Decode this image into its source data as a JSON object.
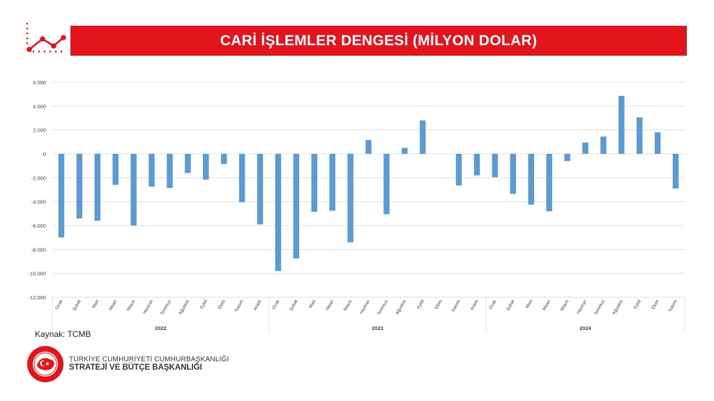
{
  "header": {
    "title": "CARİ İŞLEMLER DENGESİ (MİLYON DOLAR)",
    "icon": "trend-line-icon",
    "accent_color": "#e3141b"
  },
  "footer": {
    "source": "Kaynak: TCMB",
    "org_line1": "TÜRKİYE CUMHURİYETİ CUMHURBAŞKANLIĞI",
    "org_line2": "STRATEJİ VE BÜTÇE BAŞKANLIĞI",
    "logo_icon": "presidency-seal-icon"
  },
  "chart_data": {
    "type": "bar",
    "bar_color": "#5b9bd5",
    "ylim": [
      -12000,
      6000
    ],
    "yticks": [
      6000,
      4000,
      2000,
      0,
      -2000,
      -4000,
      -6000,
      -8000,
      -10000,
      -12000
    ],
    "ytick_labels": [
      "6.000",
      "4.000",
      "2.000",
      "0",
      "-2.000",
      "-4.000",
      "-6.000",
      "-8.000",
      "-10.000",
      "-12.000"
    ],
    "grid": true,
    "groups": [
      {
        "year": "2022",
        "categories": [
          "Ocak",
          "Şubat",
          "Mart",
          "Nisan",
          "Mayıs",
          "Haziran",
          "Temmuz",
          "Ağustos",
          "Eylül",
          "Ekim",
          "Kasım",
          "Aralık"
        ],
        "values": [
          -7000,
          -5400,
          -5600,
          -2600,
          -6000,
          -2750,
          -2850,
          -1600,
          -2150,
          -850,
          -4050,
          -5900
        ]
      },
      {
        "year": "2023",
        "categories": [
          "Ocak",
          "Şubat",
          "Mart",
          "Nisan",
          "Mayıs",
          "Haziran",
          "Temmuz",
          "Ağustos",
          "Eylül",
          "Ekim",
          "Kasım",
          "Aralık"
        ],
        "values": [
          -9800,
          -8750,
          -4850,
          -4750,
          -7400,
          1150,
          -5050,
          500,
          2800,
          null,
          -2650,
          -1800
        ]
      },
      {
        "year": "2024",
        "categories": [
          "Ocak",
          "Şubat",
          "Mart",
          "Nisan",
          "Mayıs",
          "Haziran",
          "Temmuz",
          "Ağustos",
          "Eylül",
          "Ekim",
          "Kasım"
        ],
        "values": [
          -1950,
          -3350,
          -4250,
          -4800,
          -600,
          950,
          1450,
          4850,
          3050,
          1800,
          -2900
        ]
      }
    ]
  }
}
